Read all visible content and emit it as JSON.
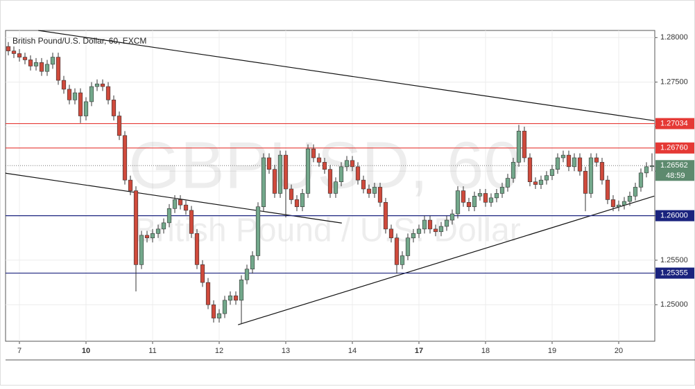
{
  "chart_data": {
    "type": "candlestick",
    "title": "British Pound/U.S. Dollar, 60, EXCM",
    "watermark": "GBPUSD, 60",
    "watermark_subtitle": "British Pound / U.S. Dollar",
    "up_color": "#73a88b",
    "down_color": "#cf4a3c",
    "grid": true,
    "ylim": [
      1.2459,
      1.2808
    ],
    "yticks": [
      {
        "value": 1.25,
        "label": "1.25000"
      },
      {
        "value": 1.255,
        "label": "1.25500"
      },
      {
        "value": 1.26,
        "label": "1.26000"
      },
      {
        "value": 1.265,
        "label": "1.26500"
      },
      {
        "value": 1.27,
        "label": "1.27000"
      },
      {
        "value": 1.275,
        "label": "1.27500"
      },
      {
        "value": 1.28,
        "label": "1.28000"
      }
    ],
    "xlim": [
      -0.5,
      116.5
    ],
    "xticks": [
      {
        "value": 2,
        "label": "7"
      },
      {
        "value": 14,
        "label": "10"
      },
      {
        "value": 26,
        "label": "11"
      },
      {
        "value": 38,
        "label": "12"
      },
      {
        "value": 50,
        "label": "13"
      },
      {
        "value": 62,
        "label": "14"
      },
      {
        "value": 74,
        "label": "17"
      },
      {
        "value": 86,
        "label": "18"
      },
      {
        "value": 98,
        "label": "19"
      },
      {
        "value": 110,
        "label": "20"
      }
    ],
    "levels": [
      {
        "price": 1.27034,
        "color": "#e53935"
      },
      {
        "price": {
          "value": 1.2676,
          "label": "1.26760"
        },
        "color": "#e53935"
      },
      {
        "price": {
          "value": 1.26,
          "label": "1.26000"
        },
        "color": "#1a237e"
      },
      {
        "price": 1.25355,
        "color": "#1a237e"
      }
    ],
    "last_price": 1.26562,
    "last_price_color": "#5d8a6e",
    "countdown": "48:59",
    "trendlines": [
      {
        "x": [
          5.4,
          116.4
        ],
        "y": [
          1.2808,
          1.27067
        ]
      },
      {
        "x": [
          -0.5,
          60.1
        ],
        "y": [
          1.26477,
          1.25917
        ]
      },
      {
        "x": [
          41.4,
          116.4
        ],
        "y": [
          1.24775,
          1.2622
        ]
      }
    ],
    "ohlc": [
      [
        1.279,
        1.2795,
        1.278,
        1.2785
      ],
      [
        1.2785,
        1.279,
        1.2777,
        1.2782
      ],
      [
        1.2782,
        1.2787,
        1.2773,
        1.2778
      ],
      [
        1.2778,
        1.2783,
        1.277,
        1.2775
      ],
      [
        1.2775,
        1.278,
        1.2763,
        1.2768
      ],
      [
        1.2768,
        1.2777,
        1.2763,
        1.2772
      ],
      [
        1.2772,
        1.2777,
        1.2757,
        1.2762
      ],
      [
        1.2762,
        1.2775,
        1.2757,
        1.277
      ],
      [
        1.277,
        1.2783,
        1.2765,
        1.2778
      ],
      [
        1.2778,
        1.2783,
        1.2747,
        1.2752
      ],
      [
        1.2752,
        1.2757,
        1.2737,
        1.2742
      ],
      [
        1.2742,
        1.2747,
        1.2725,
        1.273
      ],
      [
        1.273,
        1.2743,
        1.2725,
        1.2738
      ],
      [
        1.2738,
        1.2743,
        1.2704,
        1.2712
      ],
      [
        1.2712,
        1.2733,
        1.2707,
        1.2728
      ],
      [
        1.2728,
        1.275,
        1.2723,
        1.2745
      ],
      [
        1.2745,
        1.2753,
        1.274,
        1.2748
      ],
      [
        1.2748,
        1.2753,
        1.274,
        1.2745
      ],
      [
        1.2745,
        1.275,
        1.2725,
        1.273
      ],
      [
        1.273,
        1.2735,
        1.2707,
        1.2712
      ],
      [
        1.2712,
        1.2717,
        1.2685,
        1.269
      ],
      [
        1.269,
        1.2695,
        1.2635,
        1.264
      ],
      [
        1.264,
        1.2645,
        1.2623,
        1.2628
      ],
      [
        1.2628,
        1.2633,
        1.2515,
        1.2545
      ],
      [
        1.2545,
        1.2583,
        1.254,
        1.2578
      ],
      [
        1.2578,
        1.2583,
        1.257,
        1.2575
      ],
      [
        1.2575,
        1.2585,
        1.257,
        1.258
      ],
      [
        1.258,
        1.259,
        1.2575,
        1.2585
      ],
      [
        1.2585,
        1.2597,
        1.258,
        1.2592
      ],
      [
        1.2592,
        1.2613,
        1.2587,
        1.2608
      ],
      [
        1.2608,
        1.2623,
        1.2603,
        1.2618
      ],
      [
        1.2618,
        1.2623,
        1.2607,
        1.2612
      ],
      [
        1.2612,
        1.2617,
        1.2601,
        1.2606
      ],
      [
        1.2606,
        1.2611,
        1.2575,
        1.258
      ],
      [
        1.258,
        1.2585,
        1.254,
        1.2545
      ],
      [
        1.2545,
        1.255,
        1.252,
        1.2525
      ],
      [
        1.2525,
        1.253,
        1.2495,
        1.25
      ],
      [
        1.25,
        1.2505,
        1.248,
        1.2485
      ],
      [
        1.2485,
        1.2495,
        1.248,
        1.249
      ],
      [
        1.249,
        1.251,
        1.2485,
        1.2505
      ],
      [
        1.2505,
        1.2515,
        1.25,
        1.251
      ],
      [
        1.251,
        1.2515,
        1.25,
        1.2505
      ],
      [
        1.2505,
        1.2533,
        1.2478,
        1.2528
      ],
      [
        1.2528,
        1.2545,
        1.2523,
        1.254
      ],
      [
        1.254,
        1.256,
        1.2535,
        1.2555
      ],
      [
        1.2555,
        1.2615,
        1.255,
        1.261
      ],
      [
        1.261,
        1.267,
        1.2605,
        1.2665
      ],
      [
        1.2665,
        1.267,
        1.2647,
        1.2652
      ],
      [
        1.2652,
        1.2657,
        1.262,
        1.2625
      ],
      [
        1.2625,
        1.2673,
        1.262,
        1.2668
      ],
      [
        1.2668,
        1.2673,
        1.2598,
        1.263
      ],
      [
        1.263,
        1.2635,
        1.2613,
        1.2618
      ],
      [
        1.2618,
        1.2623,
        1.2605,
        1.261
      ],
      [
        1.261,
        1.263,
        1.2605,
        1.2625
      ],
      [
        1.2625,
        1.268,
        1.262,
        1.2675
      ],
      [
        1.2675,
        1.268,
        1.266,
        1.2665
      ],
      [
        1.2665,
        1.267,
        1.2655,
        1.266
      ],
      [
        1.266,
        1.2665,
        1.2647,
        1.2652
      ],
      [
        1.2652,
        1.2657,
        1.262,
        1.2625
      ],
      [
        1.2625,
        1.2643,
        1.262,
        1.2638
      ],
      [
        1.2638,
        1.266,
        1.2633,
        1.2655
      ],
      [
        1.2655,
        1.2667,
        1.265,
        1.2662
      ],
      [
        1.2662,
        1.2667,
        1.265,
        1.2655
      ],
      [
        1.2655,
        1.266,
        1.2635,
        1.264
      ],
      [
        1.264,
        1.2645,
        1.2625,
        1.263
      ],
      [
        1.263,
        1.2635,
        1.262,
        1.2625
      ],
      [
        1.2625,
        1.2637,
        1.262,
        1.2632
      ],
      [
        1.2632,
        1.2637,
        1.261,
        1.2615
      ],
      [
        1.2615,
        1.262,
        1.258,
        1.2585
      ],
      [
        1.2585,
        1.259,
        1.257,
        1.2575
      ],
      [
        1.2575,
        1.258,
        1.2535,
        1.2545
      ],
      [
        1.2545,
        1.256,
        1.254,
        1.2555
      ],
      [
        1.2555,
        1.258,
        1.255,
        1.2575
      ],
      [
        1.2575,
        1.2585,
        1.257,
        1.258
      ],
      [
        1.258,
        1.259,
        1.2575,
        1.2585
      ],
      [
        1.2585,
        1.26,
        1.258,
        1.2595
      ],
      [
        1.2595,
        1.26,
        1.258,
        1.2585
      ],
      [
        1.2585,
        1.259,
        1.2577,
        1.2582
      ],
      [
        1.2582,
        1.2593,
        1.2577,
        1.2588
      ],
      [
        1.2588,
        1.26,
        1.2583,
        1.2595
      ],
      [
        1.2595,
        1.2607,
        1.259,
        1.2602
      ],
      [
        1.2602,
        1.2633,
        1.2597,
        1.2628
      ],
      [
        1.2628,
        1.2633,
        1.261,
        1.2615
      ],
      [
        1.2615,
        1.262,
        1.2605,
        1.261
      ],
      [
        1.261,
        1.2627,
        1.2605,
        1.2622
      ],
      [
        1.2622,
        1.263,
        1.2617,
        1.2625
      ],
      [
        1.2625,
        1.263,
        1.261,
        1.2615
      ],
      [
        1.2615,
        1.2625,
        1.261,
        1.262
      ],
      [
        1.262,
        1.263,
        1.2615,
        1.2625
      ],
      [
        1.2625,
        1.2637,
        1.262,
        1.2632
      ],
      [
        1.2632,
        1.2647,
        1.2627,
        1.2642
      ],
      [
        1.2642,
        1.2665,
        1.2637,
        1.266
      ],
      [
        1.266,
        1.2702,
        1.2655,
        1.2695
      ],
      [
        1.2695,
        1.27,
        1.266,
        1.2665
      ],
      [
        1.2665,
        1.267,
        1.2633,
        1.2638
      ],
      [
        1.2638,
        1.2643,
        1.263,
        1.2635
      ],
      [
        1.2635,
        1.2645,
        1.263,
        1.264
      ],
      [
        1.264,
        1.265,
        1.2635,
        1.2645
      ],
      [
        1.2645,
        1.2657,
        1.264,
        1.2652
      ],
      [
        1.2652,
        1.267,
        1.2647,
        1.2665
      ],
      [
        1.2665,
        1.2673,
        1.266,
        1.2668
      ],
      [
        1.2668,
        1.2673,
        1.265,
        1.2655
      ],
      [
        1.2655,
        1.267,
        1.265,
        1.2665
      ],
      [
        1.2665,
        1.267,
        1.2645,
        1.265
      ],
      [
        1.265,
        1.2655,
        1.2605,
        1.2625
      ],
      [
        1.2625,
        1.267,
        1.262,
        1.2665
      ],
      [
        1.2665,
        1.267,
        1.2655,
        1.266
      ],
      [
        1.266,
        1.2665,
        1.2635,
        1.264
      ],
      [
        1.264,
        1.2645,
        1.2613,
        1.2618
      ],
      [
        1.2618,
        1.2623,
        1.2605,
        1.261
      ],
      [
        1.261,
        1.2617,
        1.2605,
        1.2612
      ],
      [
        1.2612,
        1.2621,
        1.2607,
        1.2616
      ],
      [
        1.2616,
        1.2627,
        1.2611,
        1.2622
      ],
      [
        1.2622,
        1.2637,
        1.2617,
        1.2632
      ],
      [
        1.2632,
        1.2653,
        1.2627,
        1.2648
      ],
      [
        1.2648,
        1.266,
        1.2643,
        1.2655
      ],
      [
        1.2655,
        1.267,
        1.265,
        1.2656
      ]
    ]
  }
}
